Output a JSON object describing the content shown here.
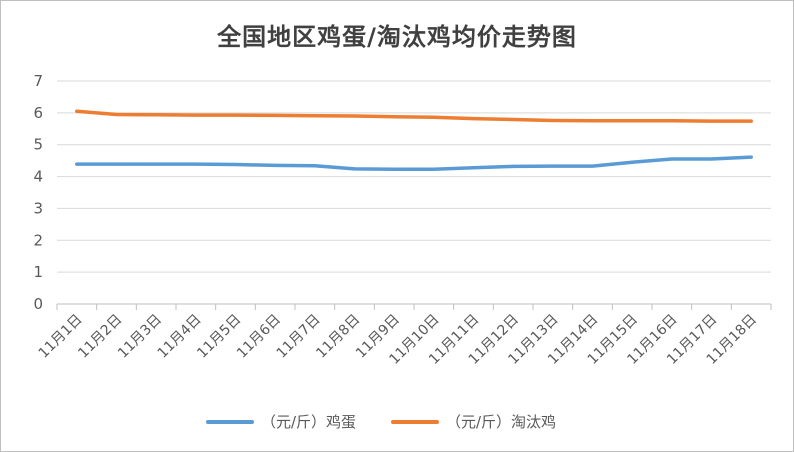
{
  "chart_data": {
    "type": "line",
    "title": "全国地区鸡蛋/淘汰鸡均价走势图",
    "categories": [
      "11月1日",
      "11月2日",
      "11月3日",
      "11月4日",
      "11月5日",
      "11月6日",
      "11月7日",
      "11月8日",
      "11月9日",
      "11月10日",
      "11月11日",
      "11月12日",
      "11月13日",
      "11月14日",
      "11月15日",
      "11月16日",
      "11月17日",
      "11月18日"
    ],
    "series": [
      {
        "name": "（元/斤）鸡蛋",
        "color": "#5b9bd5",
        "values": [
          4.39,
          4.39,
          4.39,
          4.39,
          4.38,
          4.35,
          4.34,
          4.24,
          4.23,
          4.23,
          4.28,
          4.32,
          4.33,
          4.33,
          4.45,
          4.55,
          4.55,
          4.61
        ]
      },
      {
        "name": "（元/斤）淘汰鸡",
        "color": "#ed7d31",
        "values": [
          6.05,
          5.95,
          5.94,
          5.93,
          5.93,
          5.92,
          5.91,
          5.9,
          5.88,
          5.86,
          5.82,
          5.79,
          5.76,
          5.75,
          5.75,
          5.75,
          5.74,
          5.74
        ]
      }
    ],
    "yticks": [
      0,
      1,
      2,
      3,
      4,
      5,
      6,
      7
    ],
    "ylim": [
      0,
      7
    ],
    "grid": true,
    "legend": "bottom"
  }
}
